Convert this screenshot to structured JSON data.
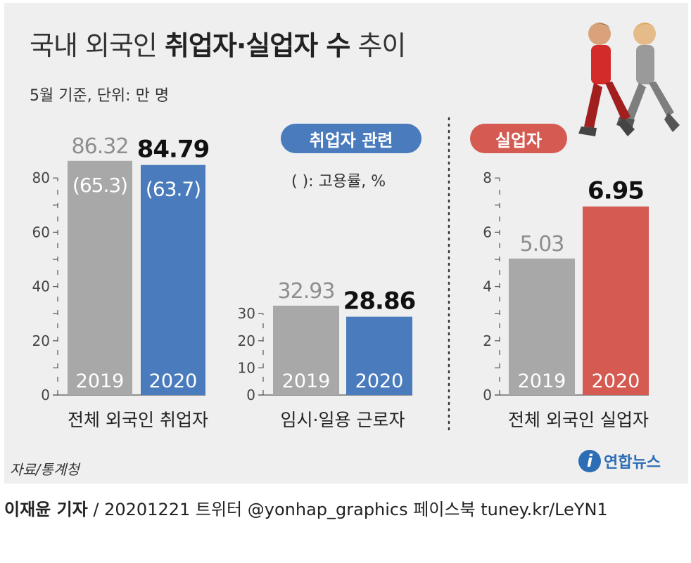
{
  "title": {
    "normal1": "국내 외국인 ",
    "bold": "취업자·실업자 수",
    "normal2": " 추이"
  },
  "subtitle": "5월 기준, 단위: 만 명",
  "legend": {
    "employed_related": "취업자 관련",
    "unemployed": "실업자",
    "note": "(   ): 고용률, %"
  },
  "source": "자료/통계청",
  "logo": {
    "mark": "i",
    "text": "연합뉴스"
  },
  "credit": {
    "author": "이재윤 기자",
    "rest": " / 20201221   트위터 @yonhap_graphics  페이스북 tuney.kr/LeYN1"
  },
  "colors": {
    "gray": "#a8a8a8",
    "blue": "#4a7bbd",
    "red": "#d45a52",
    "panel": "#efefef"
  },
  "chart_data": [
    {
      "type": "bar",
      "categories": [
        "2019",
        "2020"
      ],
      "values": [
        86.32,
        84.79
      ],
      "value_labels": [
        "86.32",
        "84.79"
      ],
      "employment_rate_labels": [
        "(65.3)",
        "(63.7)"
      ],
      "xlabel": "전체 외국인 취업자",
      "yticks": [
        0,
        20,
        40,
        60,
        80
      ],
      "ylim": [
        0,
        90
      ],
      "colors": [
        "#a8a8a8",
        "#4a7bbd"
      ]
    },
    {
      "type": "bar",
      "categories": [
        "2019",
        "2020"
      ],
      "values": [
        32.93,
        28.86
      ],
      "value_labels": [
        "32.93",
        "28.86"
      ],
      "xlabel": "임시·일용 근로자",
      "yticks": [
        0,
        10,
        20,
        30
      ],
      "ylim": [
        0,
        33
      ],
      "colors": [
        "#a8a8a8",
        "#4a7bbd"
      ]
    },
    {
      "type": "bar",
      "categories": [
        "2019",
        "2020"
      ],
      "values": [
        5.03,
        6.95
      ],
      "value_labels": [
        "5.03",
        "6.95"
      ],
      "xlabel": "전체 외국인 실업자",
      "yticks": [
        0,
        2,
        4,
        6,
        8
      ],
      "ylim": [
        0,
        8.3
      ],
      "colors": [
        "#a8a8a8",
        "#d45a52"
      ]
    }
  ]
}
